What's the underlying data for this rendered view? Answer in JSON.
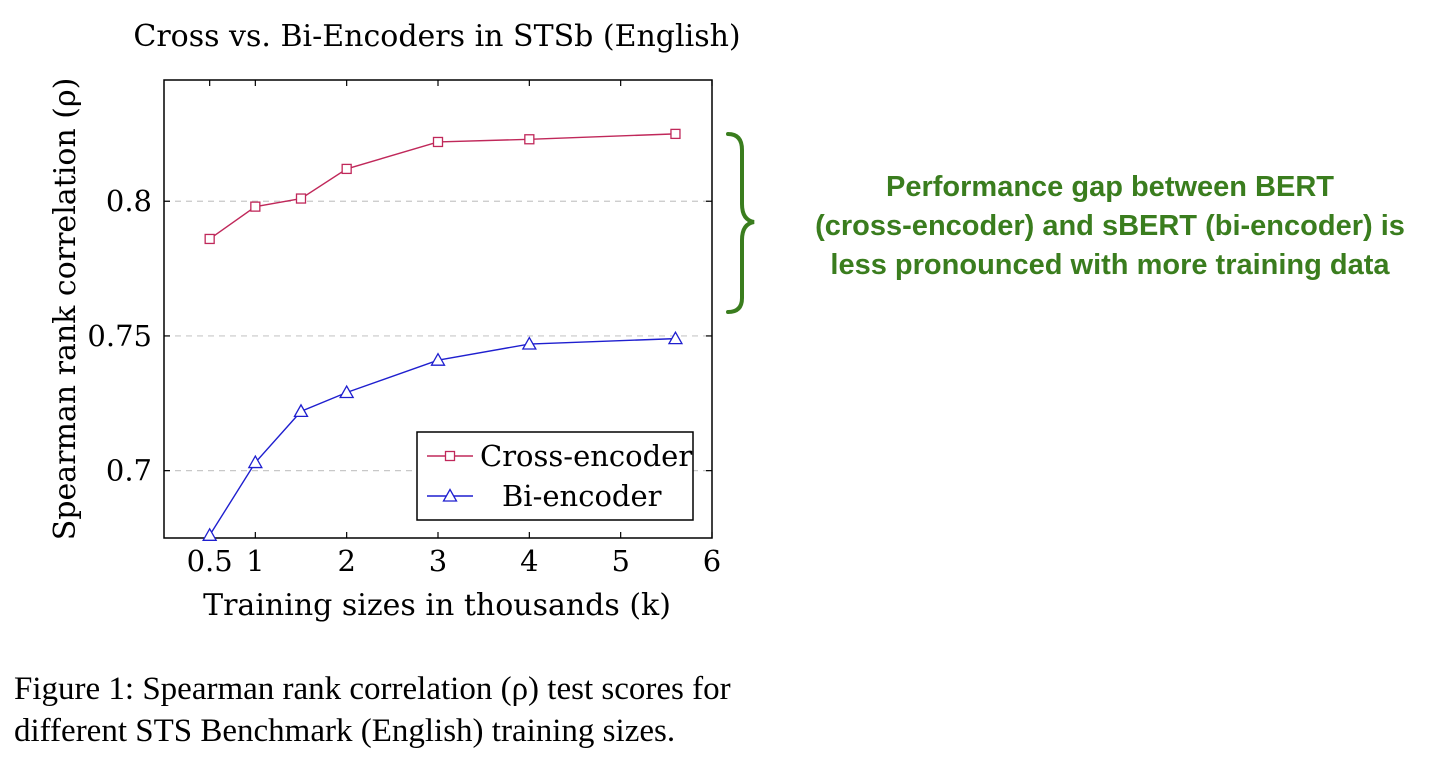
{
  "chart_data": {
    "type": "line",
    "title": "Cross vs. Bi-Encoders in STSb (English)",
    "xlabel": "Training sizes in thousands (k)",
    "ylabel": "Spearman rank correlation (ρ)",
    "xlim": [
      0,
      6
    ],
    "ylim": [
      0.675,
      0.845
    ],
    "xticks": [
      0.5,
      1,
      2,
      3,
      4,
      5,
      6
    ],
    "xtick_labels": [
      "0.5",
      "1",
      "2",
      "3",
      "4",
      "5",
      "6"
    ],
    "yticks": [
      0.7,
      0.75,
      0.8
    ],
    "ytick_labels": [
      "0.7",
      "0.75",
      "0.8"
    ],
    "grid": "horizontal dashed",
    "legend_position": "bottom-right",
    "series": [
      {
        "name": "Cross-encoder",
        "color": "#c0285a",
        "marker": "square",
        "x": [
          0.5,
          1,
          1.5,
          2,
          3,
          4,
          5.6
        ],
        "y": [
          0.786,
          0.798,
          0.801,
          0.812,
          0.822,
          0.823,
          0.825
        ]
      },
      {
        "name": "Bi-encoder",
        "color": "#1f1fcf",
        "marker": "triangle",
        "x": [
          0.5,
          1,
          1.5,
          2,
          3,
          4,
          5.6
        ],
        "y": [
          0.676,
          0.703,
          0.722,
          0.729,
          0.741,
          0.747,
          0.749
        ]
      }
    ]
  },
  "annotation": {
    "lines": [
      "Performance gap between BERT",
      "(cross-encoder) and sBERT (bi-encoder) is",
      "less pronounced with more training data"
    ],
    "color": "#3a7d1e"
  },
  "caption": {
    "line1": "Figure 1: Spearman rank correlation (ρ) test scores for",
    "line2": "different STS Benchmark (English) training sizes."
  }
}
